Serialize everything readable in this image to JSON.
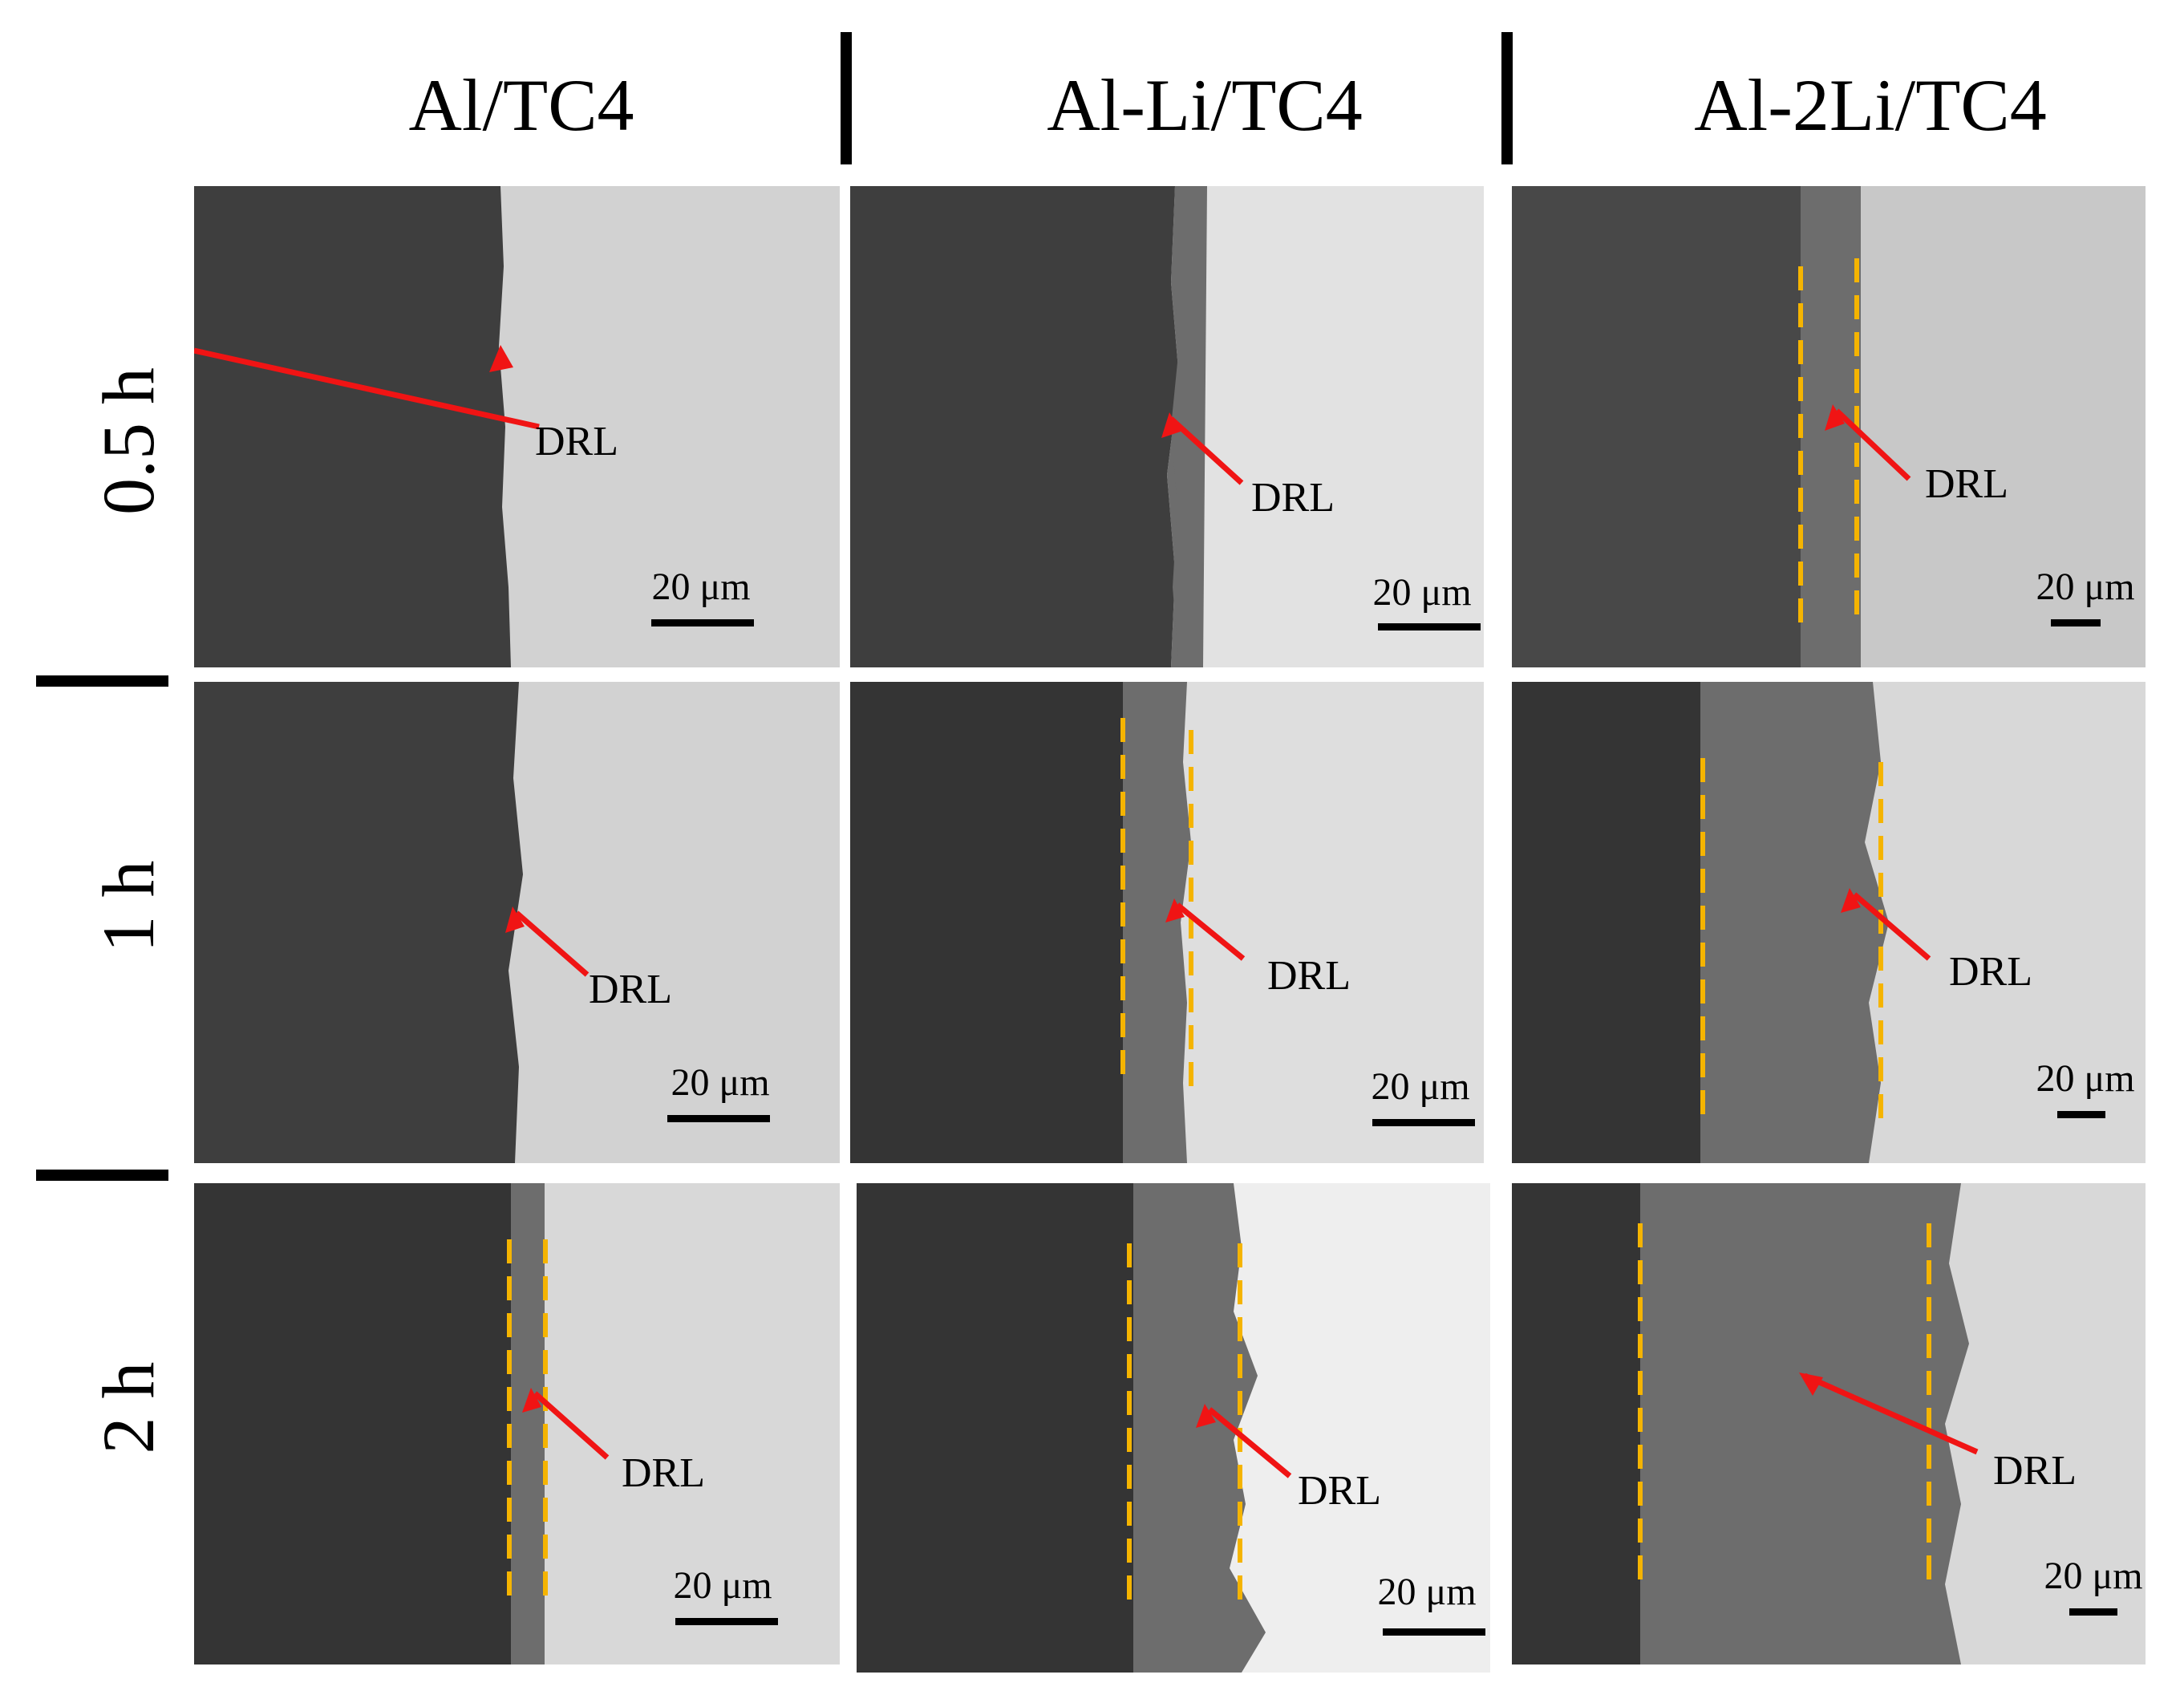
{
  "columns": [
    {
      "title": "Al/TC4"
    },
    {
      "title": "Al-Li/TC4"
    },
    {
      "title": "Al-2Li/TC4"
    }
  ],
  "rows": [
    {
      "label": "0.5 h"
    },
    {
      "label": "1 h"
    },
    {
      "label": "2 h"
    }
  ],
  "panels": [
    {
      "drl_label": "DRL",
      "scale_label": "20 μm"
    },
    {
      "drl_label": "DRL",
      "scale_label": "20 μm"
    },
    {
      "drl_label": "DRL",
      "scale_label": "20 μm"
    },
    {
      "drl_label": "DRL",
      "scale_label": "20 μm"
    },
    {
      "drl_label": "DRL",
      "scale_label": "20 μm"
    },
    {
      "drl_label": "DRL",
      "scale_label": "20 μm"
    },
    {
      "drl_label": "DRL",
      "scale_label": "20 μm"
    },
    {
      "drl_label": "DRL",
      "scale_label": "20 μm"
    },
    {
      "drl_label": "DRL",
      "scale_label": "20 μm"
    }
  ],
  "colors": {
    "aluminum_phase": "#3e3e3e",
    "reaction_layer": "#6d6d6d",
    "titanium_alloy": "#d2d2d2",
    "arrow": "#f01414",
    "boundary_dash": "#f5b400"
  }
}
